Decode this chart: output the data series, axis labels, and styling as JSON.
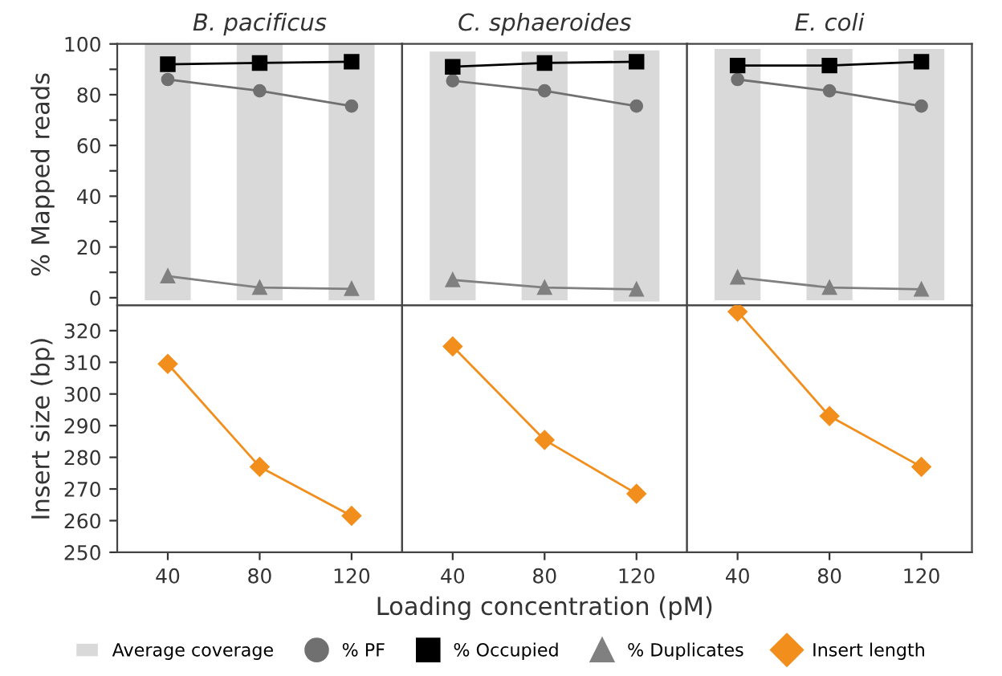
{
  "chart_data": [
    {
      "type": "line",
      "title": "B. pacificus",
      "ylabel": "% Mapped reads",
      "categories": [
        "40",
        "80",
        "120"
      ],
      "ylim": [
        -3,
        100
      ],
      "yticks": [
        0,
        {
          "value": 10,
          "label": null
        },
        20,
        {
          "value": 30,
          "label": null
        },
        40,
        {
          "value": 50,
          "label": null
        },
        60,
        {
          "value": 70,
          "label": null
        },
        80,
        {
          "value": 90,
          "label": null
        },
        100
      ],
      "tick_labels": "y",
      "legend": "bottom",
      "series": [
        {
          "name": "Average coverage",
          "type": "bar",
          "color": "#d9d9d9",
          "values": [
            101,
            101,
            101
          ],
          "base": [
            -1,
            -1,
            -1
          ]
        },
        {
          "name": "% PF",
          "color": "#707070",
          "marker": "circle",
          "values": [
            86,
            81.5,
            75.5
          ]
        },
        {
          "name": "% Occupied",
          "color": "#000000",
          "marker": "square",
          "values": [
            92,
            92.5,
            93
          ]
        },
        {
          "name": "% Duplicates",
          "color": "#808080",
          "marker": "triangle",
          "values": [
            8.5,
            4,
            3.5
          ]
        }
      ]
    },
    {
      "type": "line",
      "title": "C. sphaeroides",
      "categories": [
        "40",
        "80",
        "120"
      ],
      "ylim": [
        -3,
        100
      ],
      "tick_labels": false,
      "series": [
        {
          "type": "bar",
          "color": "#d9d9d9",
          "values": [
            98,
            98,
            99
          ],
          "base": [
            -1,
            -1,
            -1.5
          ]
        },
        {
          "color": "#707070",
          "marker": "circle",
          "values": [
            85.5,
            81.5,
            75.5
          ]
        },
        {
          "color": "#000000",
          "marker": "square",
          "values": [
            91,
            92.5,
            93
          ]
        },
        {
          "color": "#808080",
          "marker": "triangle",
          "values": [
            7,
            4,
            3.3
          ]
        }
      ]
    },
    {
      "type": "line",
      "title": "E. coli",
      "categories": [
        "40",
        "80",
        "120"
      ],
      "ylim": [
        -3,
        100
      ],
      "tick_labels": false,
      "series": [
        {
          "type": "bar",
          "color": "#d9d9d9",
          "values": [
            99,
            99,
            99
          ],
          "base": [
            -1,
            -1,
            -1
          ]
        },
        {
          "color": "#707070",
          "marker": "circle",
          "values": [
            86,
            81.5,
            75.5
          ]
        },
        {
          "color": "#000000",
          "marker": "square",
          "values": [
            91.5,
            91.5,
            93
          ]
        },
        {
          "color": "#808080",
          "marker": "triangle",
          "values": [
            8,
            4,
            3.3
          ]
        }
      ]
    },
    {
      "type": "line",
      "ylabel": "Insert size (bp)",
      "categories": [
        "40",
        "80",
        "120"
      ],
      "ylim": [
        250,
        328
      ],
      "yticks": [
        250,
        260,
        270,
        280,
        290,
        300,
        310,
        320
      ],
      "series": [
        {
          "name": "Insert length",
          "color": "#f28e1c",
          "marker": "diamond",
          "values": [
            309.5,
            277,
            261.5
          ]
        }
      ]
    },
    {
      "type": "line",
      "xlabel": "Loading concentration (pM)",
      "categories": [
        "40",
        "80",
        "120"
      ],
      "ylim": [
        250,
        328
      ],
      "tick_labels": "x",
      "series": [
        {
          "color": "#f28e1c",
          "marker": "diamond",
          "values": [
            315,
            285.5,
            268.5
          ]
        }
      ]
    },
    {
      "type": "line",
      "categories": [
        "40",
        "80",
        "120"
      ],
      "ylim": [
        250,
        328
      ],
      "tick_labels": "x",
      "series": [
        {
          "color": "#f28e1c",
          "marker": "diamond",
          "values": [
            326,
            293,
            277
          ]
        }
      ]
    }
  ]
}
